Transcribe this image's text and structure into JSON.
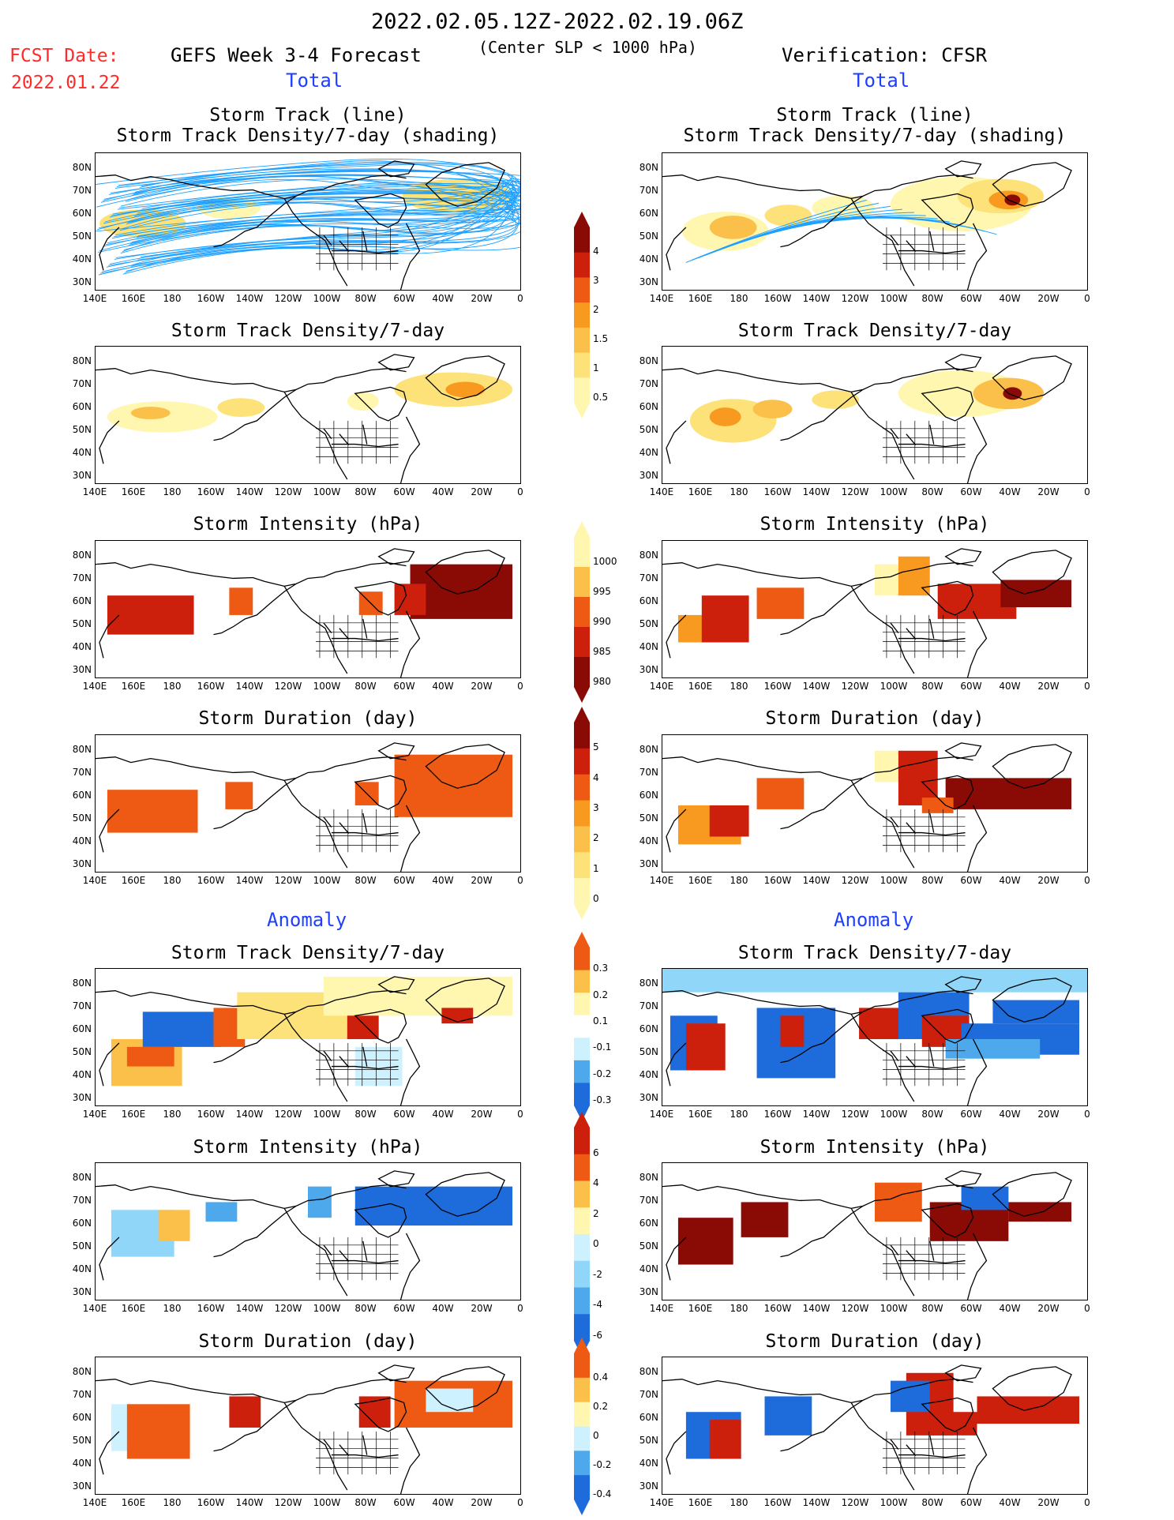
{
  "header": {
    "date_range": "2022.02.05.12Z-2022.02.19.06Z",
    "subtitle": "(Center SLP < 1000 hPa)",
    "fcst_label": "FCST Date:",
    "fcst_date": "2022.01.22",
    "left_title": "GEFS Week 3-4 Forecast",
    "right_title": "Verification: CFSR"
  },
  "sections": {
    "total": "Total",
    "anomaly": "Anomaly"
  },
  "panel_titles": {
    "track_line": "Storm Track (line)",
    "track_shading": "Storm Track Density/7-day (shading)",
    "density": "Storm Track Density/7-day",
    "intensity": "Storm Intensity (hPa)",
    "duration": "Storm Duration (day)"
  },
  "axes": {
    "lat_labels": [
      "80N",
      "70N",
      "60N",
      "50N",
      "40N",
      "30N"
    ],
    "lon_labels": [
      "140E",
      "160E",
      "180",
      "160W",
      "140W",
      "120W",
      "100W",
      "80W",
      "60W",
      "40W",
      "20W",
      "0"
    ]
  },
  "colorbars": {
    "density_total": [
      "4",
      "3",
      "2",
      "1.5",
      "1",
      "0.5"
    ],
    "intensity_total": [
      "1000",
      "995",
      "990",
      "985",
      "980"
    ],
    "duration_total": [
      "5",
      "4",
      "3",
      "2",
      "1",
      "0"
    ],
    "density_anom": [
      "0.3",
      "0.2",
      "0.1",
      "-0.1",
      "-0.2",
      "-0.3"
    ],
    "intensity_anom": [
      "6",
      "4",
      "2",
      "0",
      "-2",
      "-4",
      "-6"
    ],
    "duration_anom": [
      "0.4",
      "0.2",
      "0",
      "-0.2",
      "-0.4"
    ]
  },
  "colors": {
    "warm": [
      "#fff7b0",
      "#fde27a",
      "#fbc04a",
      "#f89a20",
      "#ee5a14",
      "#cc1f0c",
      "#8a0a05"
    ],
    "cool": [
      "#cdf1ff",
      "#8fd6f8",
      "#4ea8ec",
      "#1e6cdc"
    ],
    "track_line": "#1ea0ff"
  }
}
